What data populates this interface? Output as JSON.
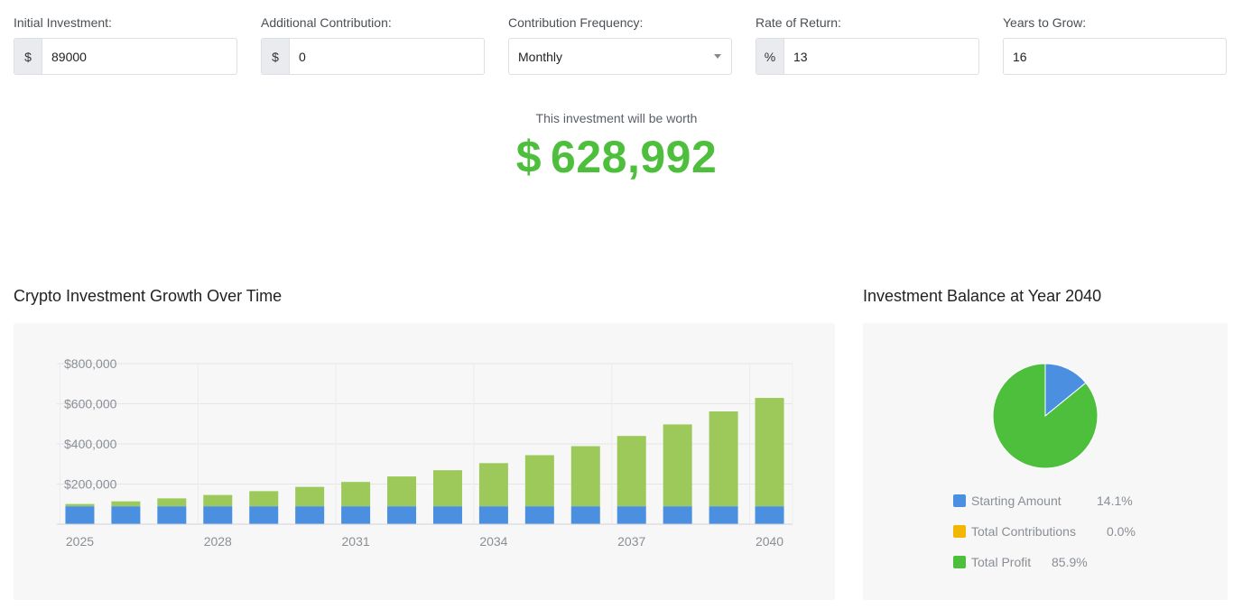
{
  "inputs": {
    "initial_investment": {
      "label": "Initial Investment:",
      "prefix": "$",
      "value": "89000"
    },
    "additional_contribution": {
      "label": "Additional Contribution:",
      "prefix": "$",
      "value": "0"
    },
    "contribution_frequency": {
      "label": "Contribution Frequency:",
      "value": "Monthly"
    },
    "rate_of_return": {
      "label": "Rate of Return:",
      "prefix": "%",
      "value": "13"
    },
    "years_to_grow": {
      "label": "Years to Grow:",
      "value": "16"
    }
  },
  "result": {
    "caption": "This investment will be worth",
    "currency": "$",
    "amount": "628,992"
  },
  "growth_section": {
    "title": "Crypto Investment Growth Over Time"
  },
  "balance_section": {
    "title": "Investment Balance at Year 2040"
  },
  "colors": {
    "starting": "#4a8fe0",
    "profit_bar": "#9cc95a",
    "contributions": "#f2b705",
    "profit_pie": "#4dbf3c",
    "result_green": "#4dbf3c"
  },
  "chart_data": [
    {
      "type": "bar",
      "stacked": true,
      "title": "",
      "x": [
        2025,
        2026,
        2027,
        2028,
        2029,
        2030,
        2031,
        2032,
        2033,
        2034,
        2035,
        2036,
        2037,
        2038,
        2039,
        2040
      ],
      "x_tick_labels": [
        "2025",
        "2028",
        "2031",
        "2034",
        "2037",
        "2040"
      ],
      "y_tick_labels": [
        "$800,000",
        "$600,000",
        "$400,000",
        "$200,000"
      ],
      "ylim": [
        0,
        800000
      ],
      "y_ticks": [
        200000,
        400000,
        600000,
        800000
      ],
      "grid": true,
      "series": [
        {
          "values": [
            89000,
            89000,
            89000,
            89000,
            89000,
            89000,
            89000,
            89000,
            89000,
            89000,
            89000,
            89000,
            89000,
            89000,
            89000,
            89000
          ]
        },
        {
          "values": [
            11600,
            24800,
            39600,
            56500,
            75500,
            97000,
            121400,
            148900,
            180000,
            215200,
            254900,
            299800,
            350600,
            408000,
            472800,
            539992
          ]
        }
      ]
    },
    {
      "type": "pie",
      "title": "",
      "slices": [
        {
          "label": "Starting Amount",
          "value": 14.1,
          "display": "14.1%"
        },
        {
          "label": "Total Contributions",
          "value": 0.0,
          "display": "0.0%"
        },
        {
          "label": "Total Profit",
          "value": 85.9,
          "display": "85.9%"
        }
      ]
    }
  ]
}
